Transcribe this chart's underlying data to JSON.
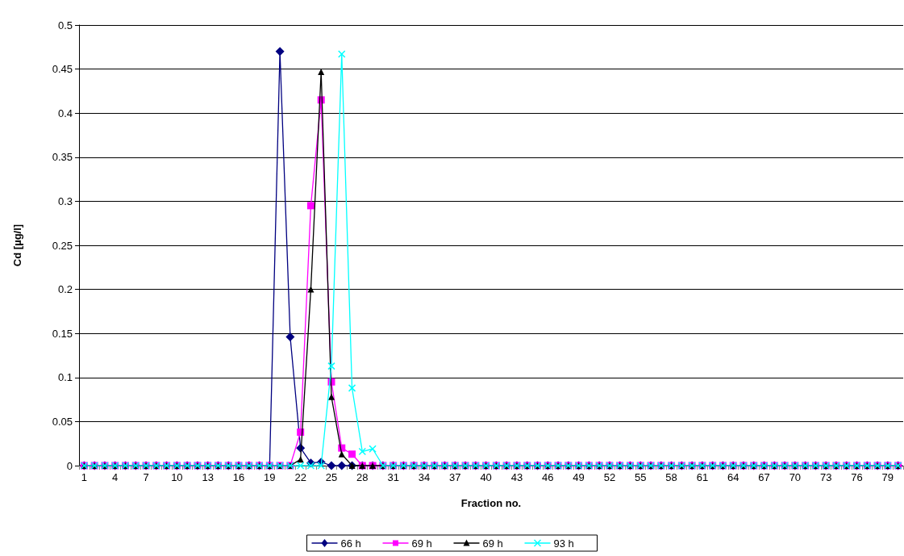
{
  "chart_data": {
    "type": "line",
    "xlabel": "Fraction no.",
    "ylabel": "Cd [µg/l]",
    "categories": [
      "1",
      null,
      null,
      "4",
      null,
      null,
      "7",
      null,
      null,
      "10",
      null,
      null,
      "13",
      null,
      null,
      "16",
      null,
      null,
      "19",
      null,
      null,
      "22",
      null,
      null,
      "25",
      null,
      null,
      "28",
      null,
      null,
      "31",
      null,
      null,
      "34",
      null,
      null,
      "37",
      null,
      null,
      "40",
      null,
      null,
      "43",
      null,
      null,
      "46",
      null,
      null,
      "49",
      null,
      null,
      "52",
      null,
      null,
      "55",
      null,
      null,
      "58",
      null,
      null,
      "61",
      null,
      null,
      "64",
      null,
      null,
      "67",
      null,
      null,
      "70",
      null,
      null,
      "73",
      null,
      null,
      "76",
      null,
      null,
      "79",
      null
    ],
    "series": [
      {
        "name": "66 h",
        "color": "#000080",
        "marker": "diamond",
        "values": [
          0,
          0,
          0,
          0,
          0,
          0,
          0,
          0,
          0,
          0,
          0,
          0,
          0,
          0,
          0,
          0,
          0,
          0,
          0,
          0.47,
          0.146,
          0.02,
          0.003,
          0.004,
          0,
          0,
          0,
          0,
          0,
          0,
          0,
          0,
          0,
          0,
          0,
          0,
          0,
          0,
          0,
          0,
          0,
          0,
          0,
          0,
          0,
          0,
          0,
          0,
          0,
          0,
          0,
          0,
          0,
          0,
          0,
          0,
          0,
          0,
          0,
          0,
          0,
          0,
          0,
          0,
          0,
          0,
          0,
          0,
          0,
          0,
          0,
          0,
          0,
          0,
          0,
          0,
          0,
          0,
          0,
          0
        ]
      },
      {
        "name": "69 h",
        "color": "#ff00ff",
        "marker": "square",
        "values": [
          0,
          0,
          0,
          0,
          0,
          0,
          0,
          0,
          0,
          0,
          0,
          0,
          0,
          0,
          0,
          0,
          0,
          0,
          0,
          0,
          0,
          0.038,
          0.295,
          0.415,
          0.095,
          0.02,
          0.013,
          0,
          0,
          0,
          0,
          0,
          0,
          0,
          0,
          0,
          0,
          0,
          0,
          0,
          0,
          0,
          0,
          0,
          0,
          0,
          0,
          0,
          0,
          0,
          0,
          0,
          0,
          0,
          0,
          0,
          0,
          0,
          0,
          0,
          0,
          0,
          0,
          0,
          0,
          0,
          0,
          0,
          0,
          0,
          0,
          0,
          0,
          0,
          0,
          0,
          0,
          0,
          0,
          0
        ]
      },
      {
        "name": "69 h",
        "color": "#000000",
        "marker": "triangle",
        "values": [
          0,
          0,
          0,
          0,
          0,
          0,
          0,
          0,
          0,
          0,
          0,
          0,
          0,
          0,
          0,
          0,
          0,
          0,
          0,
          0,
          0,
          0.007,
          0.2,
          0.447,
          0.078,
          0.013,
          0,
          0,
          0,
          0,
          0,
          0,
          0,
          0,
          0,
          0,
          0,
          0,
          0,
          0,
          0,
          0,
          0,
          0,
          0,
          0,
          0,
          0,
          0,
          0,
          0,
          0,
          0,
          0,
          0,
          0,
          0,
          0,
          0,
          0,
          0,
          0,
          0,
          0,
          0,
          0,
          0,
          0,
          0,
          0,
          0,
          0,
          0,
          0,
          0,
          0,
          0,
          0,
          0,
          0
        ]
      },
      {
        "name": "93 h",
        "color": "#00ffff",
        "marker": "cross",
        "values": [
          0,
          0,
          0,
          0,
          0,
          0,
          0,
          0,
          0,
          0,
          0,
          0,
          0,
          0,
          0,
          0,
          0,
          0,
          0,
          0,
          0,
          0,
          0,
          0,
          0.113,
          0.467,
          0.088,
          0.016,
          0.019,
          0,
          0,
          0,
          0,
          0,
          0,
          0,
          0,
          0,
          0,
          0,
          0,
          0,
          0,
          0,
          0,
          0,
          0,
          0,
          0,
          0,
          0,
          0,
          0,
          0,
          0,
          0,
          0,
          0,
          0,
          0,
          0,
          0,
          0,
          0,
          0,
          0,
          0,
          0,
          0,
          0,
          0,
          0,
          0,
          0,
          0,
          0,
          0,
          0,
          0,
          0
        ]
      }
    ],
    "ylim": [
      0,
      0.5
    ],
    "yticks": [
      0,
      0.05,
      0.1,
      0.15,
      0.2,
      0.25,
      0.3,
      0.35,
      0.4,
      0.45,
      0.5
    ],
    "grid": "y",
    "legend": "bottom",
    "line_style": "solid"
  }
}
